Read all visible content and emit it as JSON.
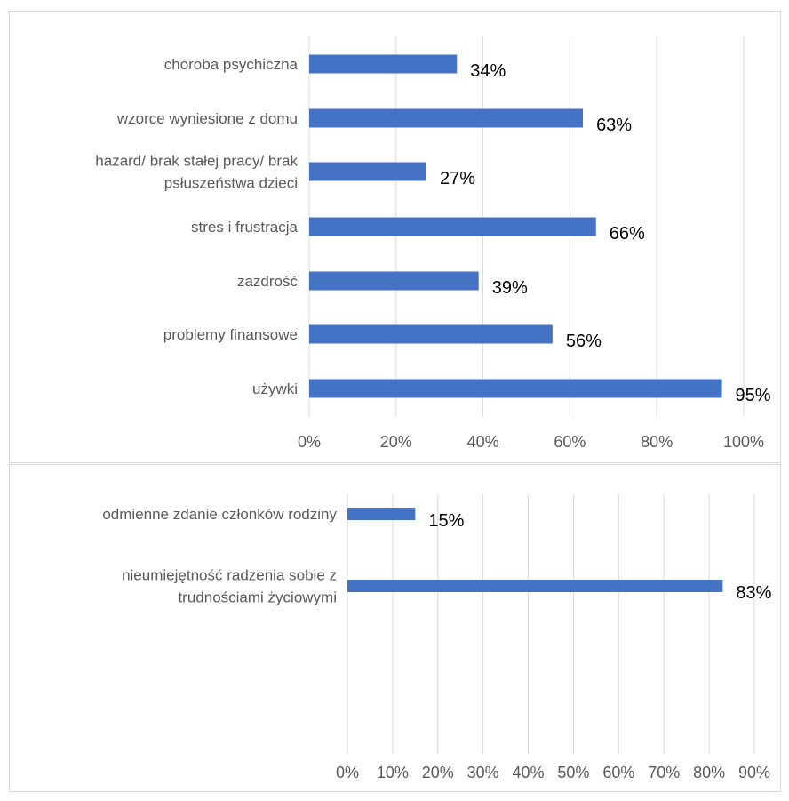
{
  "chart_data": [
    {
      "type": "bar",
      "orientation": "horizontal",
      "categories": [
        "choroba psychiczna",
        "wzorce wyniesione z domu",
        "hazard/ brak stałej pracy/ brak psłuszeństwa dzieci",
        "stres i frustracja",
        "zazdrość",
        "problemy finansowe",
        "używki"
      ],
      "category_lines": [
        [
          "choroba psychiczna"
        ],
        [
          "wzorce wyniesione z domu"
        ],
        [
          "hazard/ brak stałej pracy/ brak",
          "psłuszeństwa dzieci"
        ],
        [
          "stres i frustracja"
        ],
        [
          "zazdrość"
        ],
        [
          "problemy finansowe"
        ],
        [
          "używki"
        ]
      ],
      "values": [
        34,
        63,
        27,
        66,
        39,
        56,
        95
      ],
      "data_labels": [
        "34%",
        "63%",
        "27%",
        "66%",
        "39%",
        "56%",
        "95%"
      ],
      "xlim": [
        0,
        100
      ],
      "xticks": [
        "0%",
        "20%",
        "40%",
        "60%",
        "80%",
        "100%"
      ],
      "grid": "vertical",
      "bar_color": "#4472C4",
      "legend": "none"
    },
    {
      "type": "bar",
      "orientation": "horizontal",
      "categories": [
        "odmienne zdanie członków rodziny",
        "nieumiejętność radzenia sobie z trudnościami życiowymi"
      ],
      "category_lines": [
        [
          "odmienne zdanie członków rodziny"
        ],
        [
          "nieumiejętność radzenia sobie z",
          "trudnościami życiowymi"
        ]
      ],
      "values": [
        15,
        83
      ],
      "data_labels": [
        "15%",
        "83%"
      ],
      "xlim": [
        0,
        90
      ],
      "xticks": [
        "0%",
        "10%",
        "20%",
        "30%",
        "40%",
        "50%",
        "60%",
        "70%",
        "80%",
        "90%"
      ],
      "grid": "vertical",
      "bar_color": "#4472C4",
      "legend": "none"
    }
  ]
}
